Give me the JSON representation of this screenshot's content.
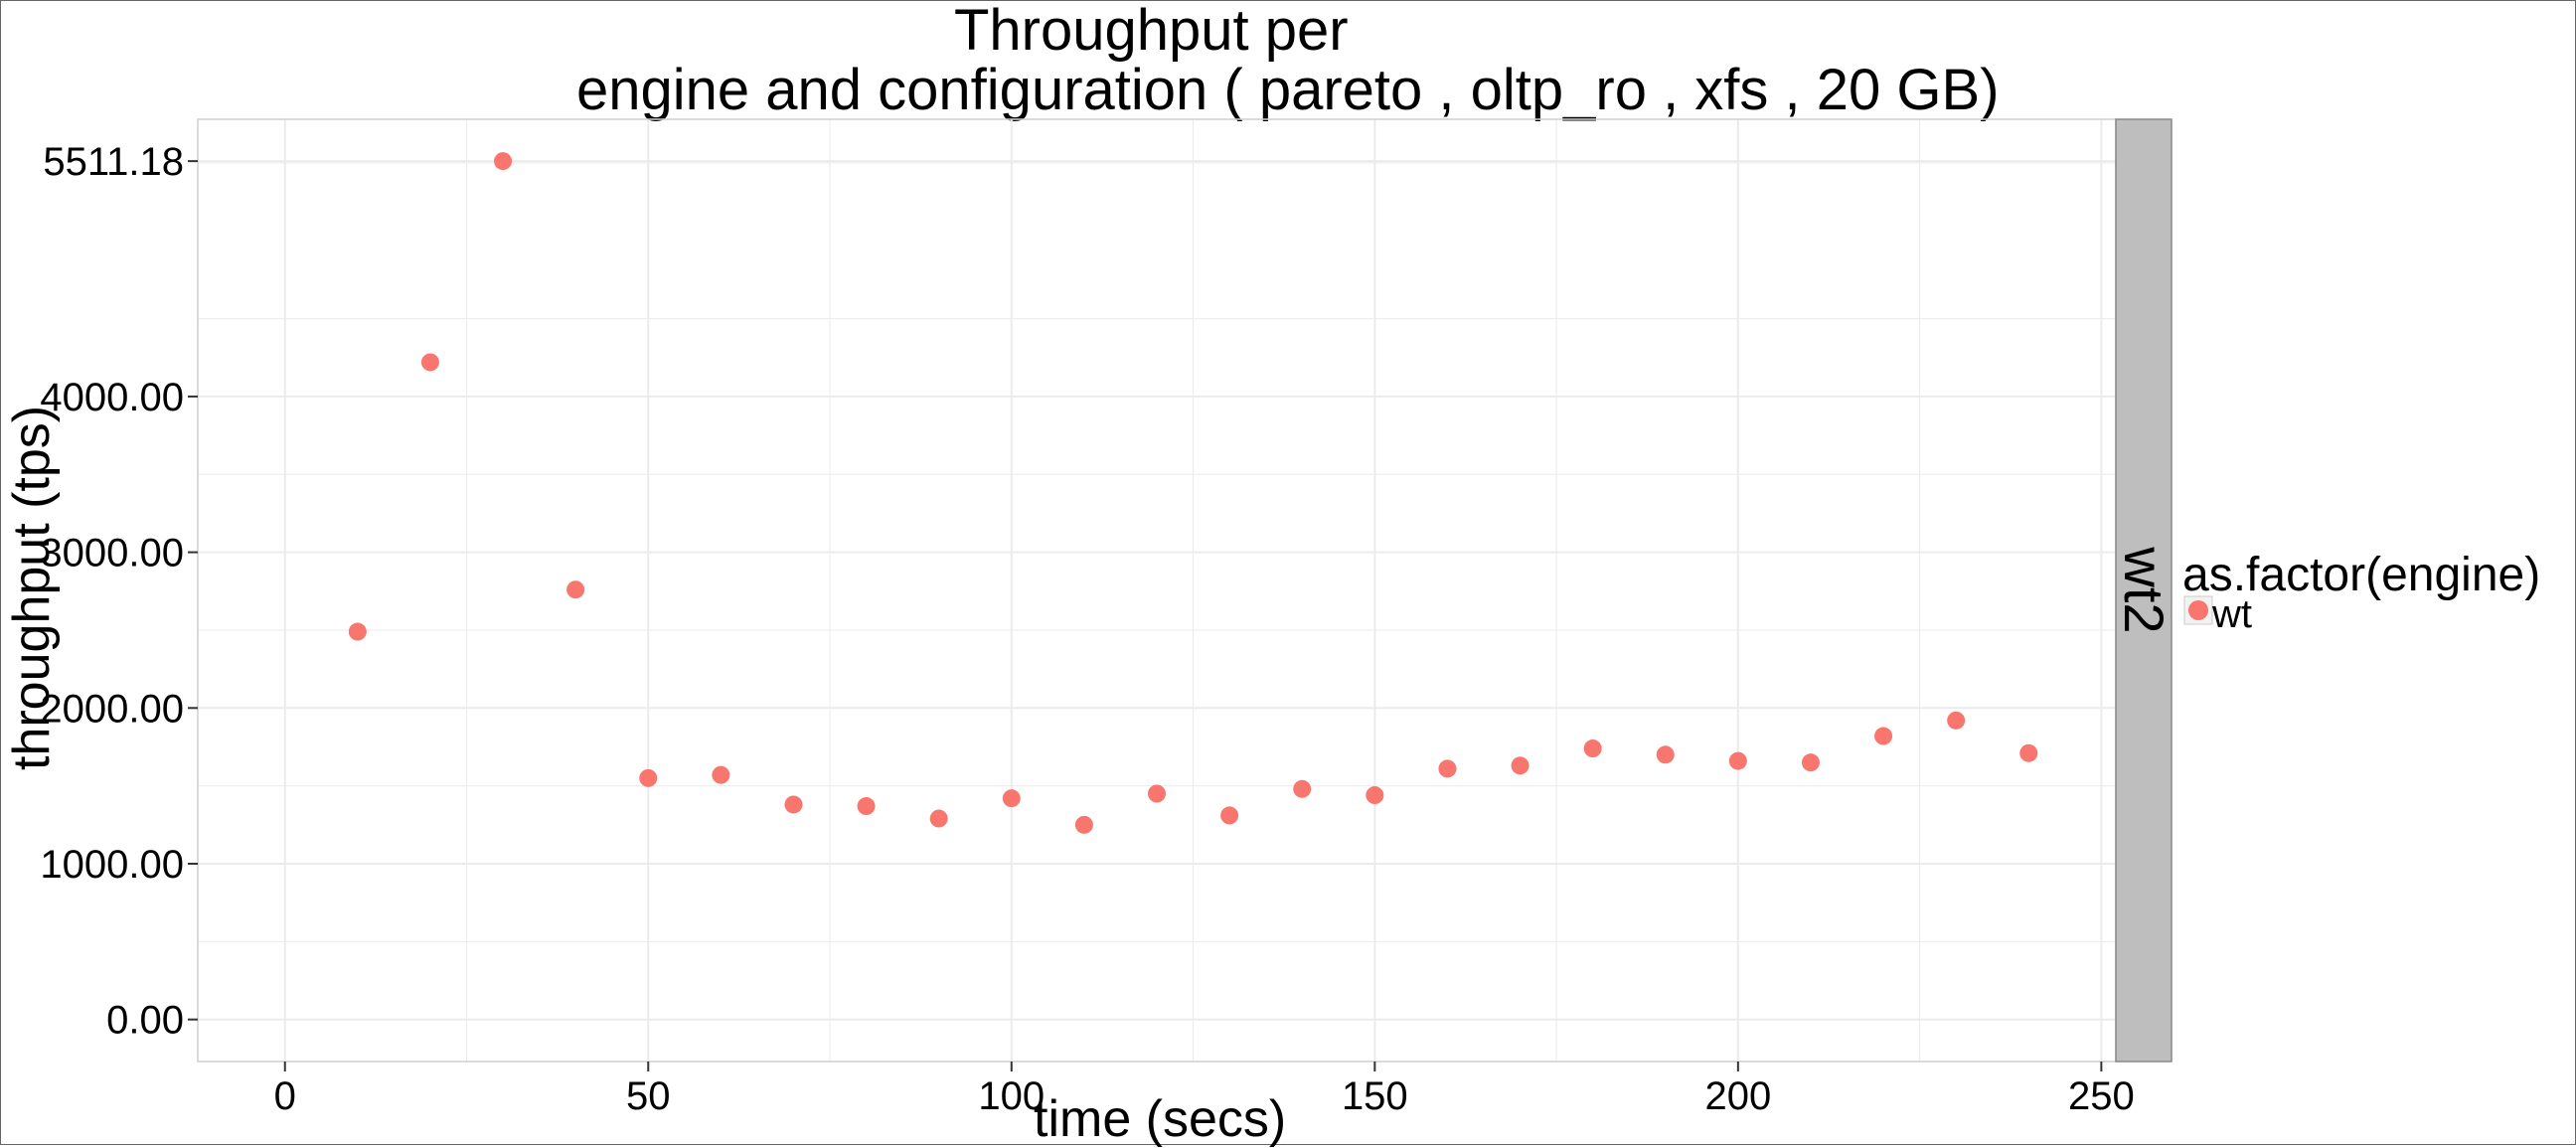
{
  "chart_data": {
    "type": "scatter",
    "title_line1": "Throughput per",
    "title_line2": "engine and configuration ( pareto , oltp_ro , xfs ,  20 GB)",
    "xlabel": "time (secs)",
    "ylabel": "throughput (tps)",
    "xlim": [
      -12,
      252
    ],
    "ylim": [
      -270,
      5780
    ],
    "x_ticks": [
      0,
      50,
      100,
      150,
      200,
      250
    ],
    "x_tick_labels": [
      "0",
      "50",
      "100",
      "150",
      "200",
      "250"
    ],
    "y_ticks": [
      0,
      1000,
      2000,
      3000,
      4000,
      5511.18
    ],
    "y_tick_labels": [
      "0.00",
      "1000.00",
      "2000.00",
      "3000.00",
      "4000.00",
      "5511.18"
    ],
    "grid": true,
    "facet_label": "wt2",
    "legend": {
      "title": "as.factor(engine)",
      "position": "right",
      "entries": [
        "wt"
      ]
    },
    "series": [
      {
        "name": "wt",
        "color": "#F8766D",
        "points": [
          [
            10,
            2490
          ],
          [
            20,
            4220
          ],
          [
            30,
            5511.18
          ],
          [
            40,
            2760
          ],
          [
            50,
            1550
          ],
          [
            60,
            1570
          ],
          [
            70,
            1380
          ],
          [
            80,
            1370
          ],
          [
            90,
            1290
          ],
          [
            100,
            1420
          ],
          [
            110,
            1250
          ],
          [
            120,
            1450
          ],
          [
            130,
            1310
          ],
          [
            140,
            1480
          ],
          [
            150,
            1440
          ],
          [
            160,
            1610
          ],
          [
            170,
            1630
          ],
          [
            180,
            1740
          ],
          [
            190,
            1700
          ],
          [
            200,
            1660
          ],
          [
            210,
            1650
          ],
          [
            220,
            1820
          ],
          [
            230,
            1920
          ],
          [
            240,
            1710
          ]
        ]
      }
    ]
  },
  "colors": {
    "series_wt": "#F8766D",
    "strip_background": "#BEBEBE",
    "grid": "#EBEBEB"
  }
}
